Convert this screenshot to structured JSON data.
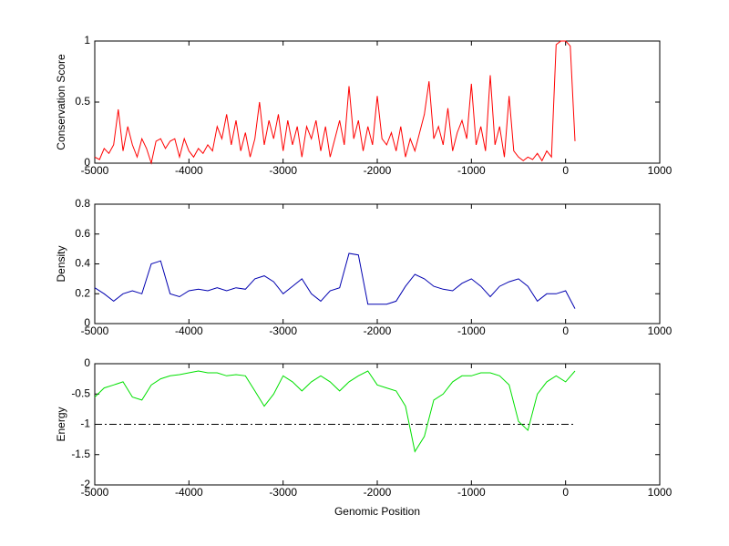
{
  "chart_data": [
    {
      "type": "line",
      "ylabel": "Conservation Score",
      "x": [
        -5000,
        -4950,
        -4900,
        -4850,
        -4800,
        -4750,
        -4700,
        -4650,
        -4600,
        -4550,
        -4500,
        -4450,
        -4400,
        -4350,
        -4300,
        -4250,
        -4200,
        -4150,
        -4100,
        -4050,
        -4000,
        -3950,
        -3900,
        -3850,
        -3800,
        -3750,
        -3700,
        -3650,
        -3600,
        -3550,
        -3500,
        -3450,
        -3400,
        -3350,
        -3300,
        -3250,
        -3200,
        -3150,
        -3100,
        -3050,
        -3000,
        -2950,
        -2900,
        -2850,
        -2800,
        -2750,
        -2700,
        -2650,
        -2600,
        -2550,
        -2500,
        -2450,
        -2400,
        -2350,
        -2300,
        -2250,
        -2200,
        -2150,
        -2100,
        -2050,
        -2000,
        -1950,
        -1900,
        -1850,
        -1800,
        -1750,
        -1700,
        -1650,
        -1600,
        -1550,
        -1500,
        -1450,
        -1400,
        -1350,
        -1300,
        -1250,
        -1200,
        -1150,
        -1100,
        -1050,
        -1000,
        -950,
        -900,
        -850,
        -800,
        -750,
        -700,
        -650,
        -600,
        -550,
        -500,
        -450,
        -400,
        -350,
        -300,
        -250,
        -200,
        -150,
        -100,
        -50,
        0,
        50,
        100
      ],
      "series": [
        {
          "color": "#ff0000",
          "values": [
            0.05,
            0.03,
            0.12,
            0.08,
            0.15,
            0.44,
            0.1,
            0.3,
            0.15,
            0.05,
            0.2,
            0.12,
            0.0,
            0.18,
            0.2,
            0.12,
            0.18,
            0.2,
            0.05,
            0.2,
            0.1,
            0.05,
            0.12,
            0.08,
            0.15,
            0.1,
            0.3,
            0.2,
            0.4,
            0.15,
            0.35,
            0.1,
            0.25,
            0.05,
            0.2,
            0.5,
            0.15,
            0.35,
            0.2,
            0.4,
            0.1,
            0.35,
            0.15,
            0.3,
            0.05,
            0.3,
            0.2,
            0.35,
            0.1,
            0.3,
            0.05,
            0.2,
            0.35,
            0.15,
            0.63,
            0.2,
            0.35,
            0.1,
            0.3,
            0.15,
            0.55,
            0.2,
            0.15,
            0.25,
            0.1,
            0.3,
            0.05,
            0.2,
            0.1,
            0.25,
            0.4,
            0.67,
            0.2,
            0.3,
            0.15,
            0.45,
            0.1,
            0.25,
            0.35,
            0.2,
            0.65,
            0.15,
            0.3,
            0.1,
            0.72,
            0.15,
            0.3,
            0.05,
            0.55,
            0.1,
            0.05,
            0.02,
            0.05,
            0.03,
            0.08,
            0.02,
            0.1,
            0.05,
            0.97,
            1,
            1,
            0.96,
            0.18
          ]
        }
      ],
      "xlim": [
        -5000,
        1000
      ],
      "xticks": [
        -5000,
        -4000,
        -3000,
        -2000,
        -1000,
        0,
        1000
      ],
      "ylim": [
        0,
        1
      ],
      "yticks": [
        0,
        0.5,
        1
      ]
    },
    {
      "type": "line",
      "ylabel": "Density",
      "x": [
        -5000,
        -4900,
        -4800,
        -4700,
        -4600,
        -4500,
        -4400,
        -4300,
        -4200,
        -4100,
        -4000,
        -3900,
        -3800,
        -3700,
        -3600,
        -3500,
        -3400,
        -3300,
        -3200,
        -3100,
        -3000,
        -2900,
        -2800,
        -2700,
        -2600,
        -2500,
        -2400,
        -2300,
        -2200,
        -2100,
        -2000,
        -1900,
        -1800,
        -1700,
        -1600,
        -1500,
        -1400,
        -1300,
        -1200,
        -1100,
        -1000,
        -900,
        -800,
        -700,
        -600,
        -500,
        -400,
        -300,
        -200,
        -100,
        0,
        100
      ],
      "series": [
        {
          "color": "#0000b0",
          "values": [
            0.24,
            0.2,
            0.15,
            0.2,
            0.22,
            0.2,
            0.4,
            0.42,
            0.2,
            0.18,
            0.22,
            0.23,
            0.22,
            0.24,
            0.22,
            0.24,
            0.23,
            0.3,
            0.32,
            0.28,
            0.2,
            0.25,
            0.3,
            0.2,
            0.15,
            0.22,
            0.24,
            0.47,
            0.46,
            0.13,
            0.13,
            0.13,
            0.15,
            0.25,
            0.33,
            0.3,
            0.25,
            0.23,
            0.22,
            0.27,
            0.3,
            0.25,
            0.18,
            0.25,
            0.28,
            0.3,
            0.25,
            0.15,
            0.2,
            0.2,
            0.22,
            0.1
          ]
        }
      ],
      "xlim": [
        -5000,
        1000
      ],
      "xticks": [
        -5000,
        -4000,
        -3000,
        -2000,
        -1000,
        0,
        1000
      ],
      "ylim": [
        0,
        0.8
      ],
      "yticks": [
        0,
        0.2,
        0.4,
        0.6,
        0.8
      ]
    },
    {
      "type": "line",
      "ylabel": "Energy",
      "xlabel": "Genomic Position",
      "x": [
        -5000,
        -4900,
        -4800,
        -4700,
        -4600,
        -4500,
        -4400,
        -4300,
        -4200,
        -4100,
        -4000,
        -3900,
        -3800,
        -3700,
        -3600,
        -3500,
        -3400,
        -3300,
        -3200,
        -3100,
        -3000,
        -2900,
        -2800,
        -2700,
        -2600,
        -2500,
        -2400,
        -2300,
        -2200,
        -2100,
        -2000,
        -1900,
        -1800,
        -1700,
        -1600,
        -1500,
        -1400,
        -1300,
        -1200,
        -1100,
        -1000,
        -900,
        -800,
        -700,
        -600,
        -500,
        -400,
        -300,
        -200,
        -100,
        0,
        100
      ],
      "series": [
        {
          "color": "#00e000",
          "values": [
            -0.55,
            -0.4,
            -0.35,
            -0.3,
            -0.55,
            -0.6,
            -0.35,
            -0.25,
            -0.2,
            -0.18,
            -0.15,
            -0.12,
            -0.15,
            -0.15,
            -0.2,
            -0.18,
            -0.2,
            -0.45,
            -0.7,
            -0.5,
            -0.2,
            -0.3,
            -0.45,
            -0.3,
            -0.2,
            -0.3,
            -0.45,
            -0.3,
            -0.2,
            -0.12,
            -0.35,
            -0.4,
            -0.45,
            -0.7,
            -1.45,
            -1.2,
            -0.6,
            -0.5,
            -0.3,
            -0.2,
            -0.2,
            -0.15,
            -0.15,
            -0.2,
            -0.35,
            -0.95,
            -1.1,
            -0.5,
            -0.3,
            -0.2,
            -0.3,
            -0.12
          ]
        }
      ],
      "hline": {
        "value": -1,
        "x": [
          -5000,
          100
        ]
      },
      "xlim": [
        -5000,
        1000
      ],
      "xticks": [
        -5000,
        -4000,
        -3000,
        -2000,
        -1000,
        0,
        1000
      ],
      "ylim": [
        -2,
        0
      ],
      "yticks": [
        -2,
        -1.5,
        -1,
        -0.5,
        0
      ]
    }
  ]
}
